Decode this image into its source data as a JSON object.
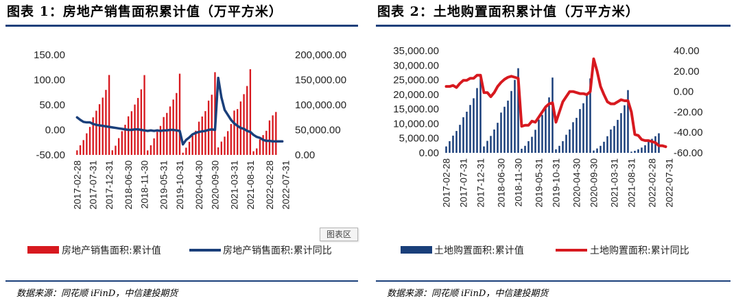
{
  "colors": {
    "red": "#d7191f",
    "navy": "#1a3f7a",
    "rule": "#1a3f7a"
  },
  "chart_data": [
    {
      "type": "bar+line",
      "title": "图表 1：房地产销售面积累计值（万平方米）",
      "left_axis": {
        "ticks": [
          "150.00",
          "100.00",
          "50.00",
          "0.00",
          "-50.00"
        ],
        "range": [
          -50,
          150
        ],
        "series": "line"
      },
      "right_axis": {
        "ticks": [
          "200,000.00",
          "150,000.00",
          "100,000.00",
          "50,000.00",
          "0.00"
        ],
        "range": [
          0,
          200000
        ],
        "series": "bar"
      },
      "x_tick_labels": [
        "2017-02-28",
        "2017-07-31",
        "2017-12-31",
        "2018-06-30",
        "2018-11-30",
        "2019-05-31",
        "2019-10-31",
        "2020-04-30",
        "2020-09-30",
        "2021-03-31",
        "2021-08-31",
        "2022-02-28",
        "2022-07-31"
      ],
      "x_tick_index": [
        0,
        5,
        10,
        16,
        21,
        27,
        32,
        38,
        43,
        49,
        54,
        60,
        65
      ],
      "series": [
        {
          "name": "房地产销售面积:累计值",
          "kind": "bar",
          "axis": "right",
          "values": [
            9100,
            19200,
            29600,
            43100,
            55900,
            75100,
            88300,
            101300,
            114500,
            129900,
            159700,
            9200,
            18400,
            33500,
            47400,
            60200,
            77100,
            87300,
            100600,
            113800,
            131000,
            159500,
            9000,
            19200,
            33100,
            46300,
            57900,
            75700,
            83900,
            96800,
            110600,
            123700,
            162300,
            4400,
            14400,
            26100,
            38300,
            48300,
            66400,
            76700,
            87500,
            108500,
            120300,
            165300,
            15000,
            26600,
            36500,
            47500,
            61700,
            88600,
            91600,
            106800,
            121400,
            137700,
            171200,
            7300,
            13000,
            31000,
            39600,
            48200,
            68900,
            79000,
            85800
          ]
        },
        {
          "name": "房地产销售面积:累计同比",
          "kind": "line",
          "axis": "left",
          "values": [
            25.0,
            20.0,
            16.0,
            15.0,
            15.0,
            12.0,
            10.0,
            9.0,
            8.0,
            7.0,
            6.0,
            5.0,
            4.0,
            3.0,
            2.0,
            1.0,
            0.0,
            0.0,
            1.0,
            1.0,
            0.0,
            -1.0,
            -2.0,
            -1.0,
            -2.0,
            -1.0,
            -2.0,
            -1.0,
            -1.0,
            0.0,
            0.0,
            -1.0,
            -2.0,
            -29.0,
            -20.0,
            -15.0,
            -9.0,
            -6.0,
            -4.0,
            -3.0,
            -2.0,
            0.0,
            1.0,
            0.0,
            104.0,
            65.0,
            40.0,
            30.0,
            20.0,
            13.0,
            8.0,
            4.0,
            2.0,
            -2.0,
            -4.0,
            -10.0,
            -14.0,
            -16.0,
            -20.0,
            -22.0,
            -22.0,
            -23.0,
            -23.0,
            -23.0,
            -23.0
          ]
        }
      ],
      "legend": [
        "房地产销售面积:累计值",
        "房地产销售面积:累计同比"
      ],
      "chart_area_label": "图表区",
      "source": "数据来源：同花顺 iFinD，中信建投期货"
    },
    {
      "type": "bar+line",
      "title": "图表 2：土地购置面积累计值（万平方米）",
      "left_axis": {
        "ticks": [
          "35,000.00",
          "30,000.00",
          "25,000.00",
          "20,000.00",
          "15,000.00",
          "10,000.00",
          "5,000.00",
          "0.00"
        ],
        "range": [
          0,
          35000
        ],
        "series": "bar"
      },
      "right_axis": {
        "ticks": [
          "40.00",
          "20.00",
          "0.00",
          "-20.00",
          "-40.00",
          "-60.00"
        ],
        "range": [
          -60,
          40
        ],
        "series": "line"
      },
      "x_tick_labels": [
        "2017-02-28",
        "2017-07-31",
        "2017-12-31",
        "2018-06-30",
        "2018-11-30",
        "2019-05-31",
        "2019-10-31",
        "2020-04-30",
        "2020-09-30",
        "2021-03-31",
        "2021-08-31",
        "2022-02-28",
        "2022-07-31"
      ],
      "x_tick_index": [
        0,
        5,
        10,
        16,
        21,
        27,
        32,
        38,
        43,
        49,
        54,
        60,
        65
      ],
      "series": [
        {
          "name": "土地购置面积:累计值",
          "kind": "bar",
          "axis": "left",
          "values": [
            2200,
            4000,
            5900,
            7500,
            9600,
            12200,
            14100,
            16400,
            18700,
            22200,
            25500,
            2200,
            4100,
            5800,
            8000,
            10300,
            13800,
            15800,
            17900,
            21200,
            25000,
            29000,
            1400,
            2400,
            4000,
            5500,
            7900,
            11400,
            13000,
            16000,
            19000,
            25800,
            1200,
            2400,
            4000,
            6200,
            8000,
            10500,
            12000,
            15000,
            17000,
            19700,
            25500,
            800,
            1500,
            2400,
            3800,
            5700,
            8000,
            9200,
            11300,
            13600,
            16300,
            21500,
            400,
            700,
            1200,
            1800,
            2600,
            4000,
            4800,
            5700,
            6700
          ]
        },
        {
          "name": "土地购置面积:累计同比",
          "kind": "line",
          "axis": "right",
          "values": [
            5.0,
            5.0,
            6.0,
            4.0,
            8.0,
            11.0,
            11.0,
            13.0,
            13.0,
            16.0,
            16.0,
            -1.0,
            -1.0,
            -5.0,
            -1.0,
            5.0,
            9.0,
            12.0,
            14.0,
            15.0,
            14.0,
            13.0,
            -34.0,
            -33.0,
            -33.0,
            -29.0,
            -30.0,
            -25.0,
            -20.0,
            -15.0,
            -12.0,
            -11.0,
            -30.0,
            -20.0,
            -10.0,
            -5.0,
            0.0,
            0.0,
            -1.0,
            -2.0,
            -2.0,
            -3.0,
            0.0,
            32.0,
            20.0,
            5.0,
            -3.0,
            -10.0,
            -12.0,
            -12.0,
            -10.0,
            -8.0,
            -9.0,
            -9.0,
            -20.0,
            -42.0,
            -43.0,
            -47.0,
            -48.0,
            -48.0,
            -49.0,
            -50.0,
            -53.0,
            -53.0,
            -54.0
          ]
        }
      ],
      "legend": [
        "土地购置面积:累计值",
        "土地购置面积:累计同比"
      ],
      "source": "数据来源：同花顺 iFinD，中信建投期货"
    }
  ]
}
